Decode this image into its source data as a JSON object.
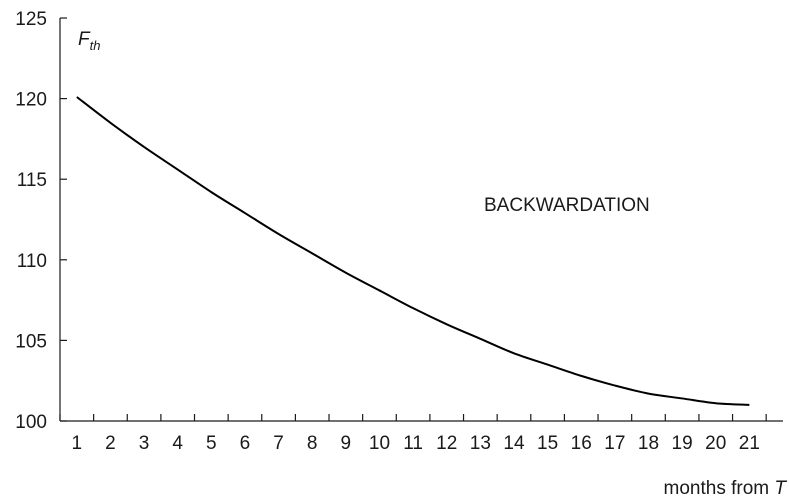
{
  "chart_data": {
    "type": "line",
    "ylabel_main": "F",
    "ylabel_sub": "th",
    "xlabel_main": "months from ",
    "xlabel_var": "T",
    "annotation": "BACKWARDATION",
    "ylim": [
      100,
      125
    ],
    "yticks": [
      "100",
      "105",
      "110",
      "115",
      "120",
      "125"
    ],
    "xlim": [
      0.5,
      22
    ],
    "xticks": [
      "1",
      "2",
      "3",
      "4",
      "5",
      "6",
      "7",
      "8",
      "9",
      "10",
      "11",
      "12",
      "13",
      "14",
      "15",
      "16",
      "17",
      "18",
      "19",
      "20",
      "21"
    ],
    "grid": false,
    "series": [
      {
        "x": [
          1,
          2,
          3,
          4,
          5,
          6,
          7,
          8,
          9,
          10,
          11,
          12,
          13,
          14,
          15,
          16,
          17,
          18,
          19,
          20,
          21
        ],
        "y": [
          120.1,
          118.5,
          117.0,
          115.6,
          114.2,
          112.9,
          111.6,
          110.4,
          109.2,
          108.1,
          107.0,
          106.0,
          105.1,
          104.2,
          103.5,
          102.8,
          102.2,
          101.7,
          101.4,
          101.1,
          101.0
        ]
      }
    ]
  }
}
